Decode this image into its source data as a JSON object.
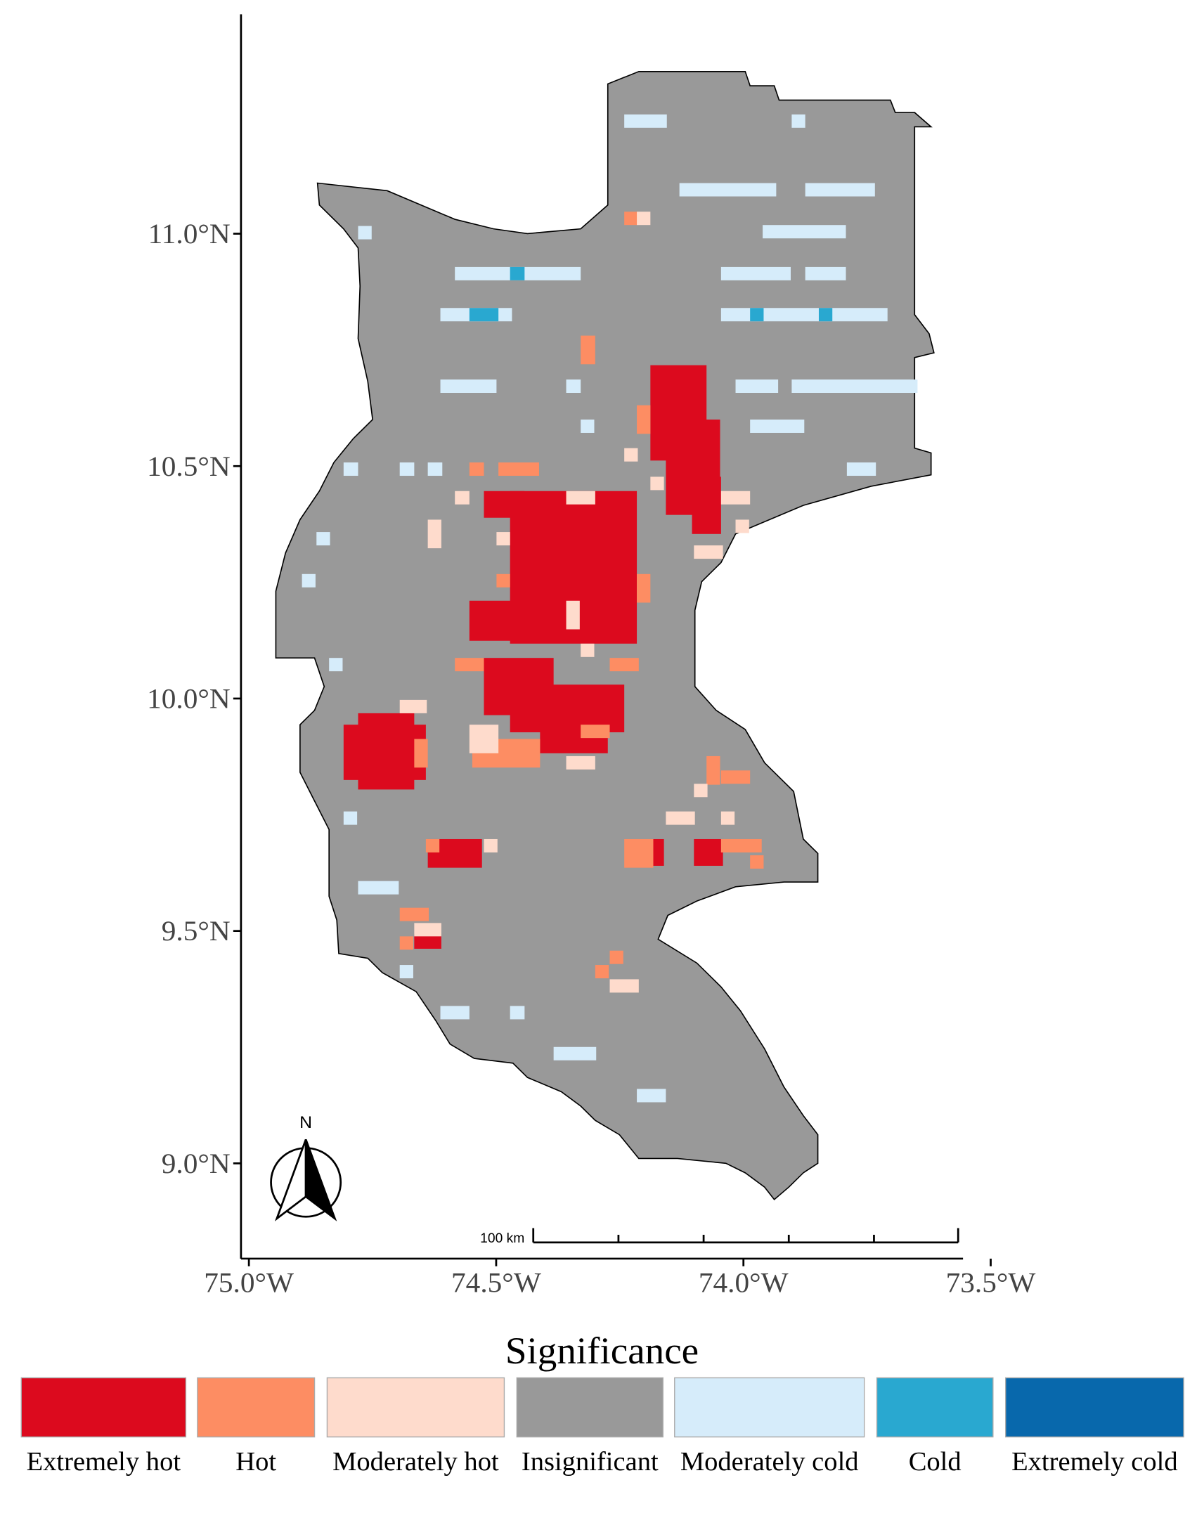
{
  "map": {
    "xlim": [
      -75.016,
      -73.556
    ],
    "ylim": [
      8.795,
      11.472
    ],
    "xticks": [
      {
        "value": -75.0,
        "label": "75.0°W"
      },
      {
        "value": -74.5,
        "label": "74.5°W"
      },
      {
        "value": -74.0,
        "label": "74.0°W"
      },
      {
        "value": -73.5,
        "label": "73.5°W"
      }
    ],
    "yticks": [
      {
        "value": 9.0,
        "label": "9.0°N"
      },
      {
        "value": 9.5,
        "label": "9.5°N"
      },
      {
        "value": 10.0,
        "label": "10.0°N"
      },
      {
        "value": 10.5,
        "label": "10.5°N"
      },
      {
        "value": 11.0,
        "label": "11.0°N"
      }
    ],
    "north_label": "N",
    "scale_bar_label": "100 km",
    "legend": {
      "title": "Significance",
      "items": [
        {
          "label": "Extremely hot",
          "color": "#dc0a1e"
        },
        {
          "label": "Hot",
          "color": "#fd8d63"
        },
        {
          "label": "Moderately hot",
          "color": "#fedbcc"
        },
        {
          "label": "Insignificant",
          "color": "#999999"
        },
        {
          "label": "Moderately cold",
          "color": "#d6ecfa"
        },
        {
          "label": "Cold",
          "color": "#29a8d0"
        },
        {
          "label": "Extremely cold",
          "color": "#0868ac"
        }
      ]
    }
  }
}
